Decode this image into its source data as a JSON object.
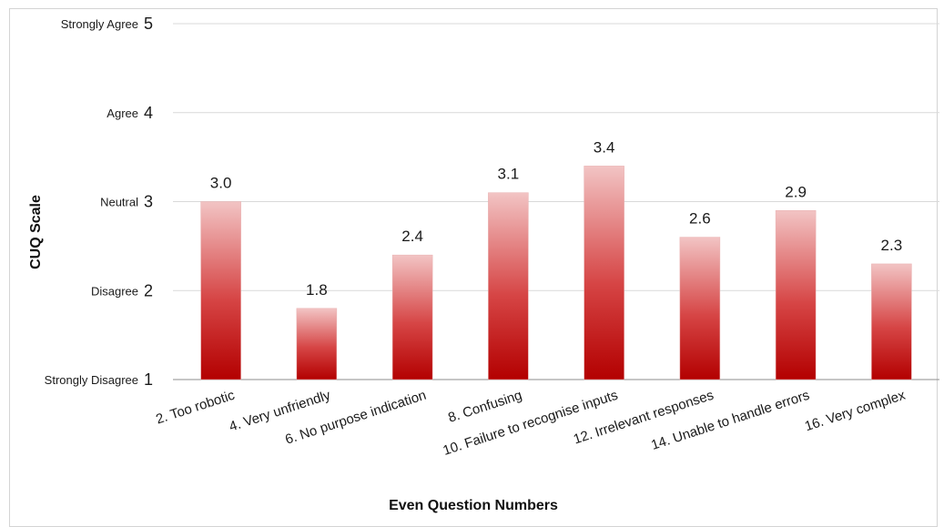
{
  "chart_data": {
    "type": "bar",
    "categories": [
      "2. Too robotic",
      "4. Very unfriendly",
      "6. No purpose indication",
      "8. Confusing",
      "10. Failure to recognise inputs",
      "12. Irrelevant responses",
      "14. Unable to handle errors",
      "16. Very complex"
    ],
    "values": [
      3.0,
      1.8,
      2.4,
      3.1,
      3.4,
      2.6,
      2.9,
      2.3
    ],
    "data_labels": [
      "3.0",
      "1.8",
      "2.4",
      "3.1",
      "3.4",
      "2.6",
      "2.9",
      "2.3"
    ],
    "xlabel": "Even Question Numbers",
    "ylabel": "CUQ Scale",
    "ylim": [
      1,
      5
    ],
    "y_ticks": [
      {
        "value": 5,
        "text": "Strongly Agree",
        "num": "5"
      },
      {
        "value": 4,
        "text": "Agree",
        "num": "4"
      },
      {
        "value": 3,
        "text": "Neutral",
        "num": "3"
      },
      {
        "value": 2,
        "text": "Disagree",
        "num": "2"
      },
      {
        "value": 1,
        "text": "Strongly Disagree",
        "num": "1"
      }
    ],
    "grid": true,
    "bar_color_top": "#f2c4c4",
    "bar_color_bottom": "#b30000"
  }
}
